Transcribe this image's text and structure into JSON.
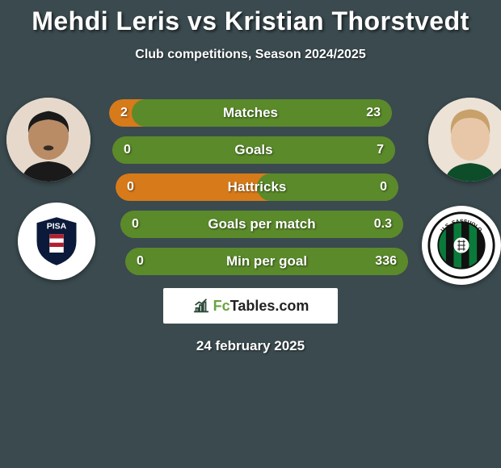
{
  "title": "Mehdi Leris vs Kristian Thorstvedt",
  "subtitle": "Club competitions, Season 2024/2025",
  "date": "24 february 2025",
  "footer_brand_prefix": "Fc",
  "footer_brand_suffix": "Tables.com",
  "background_color": "#3a4a4f",
  "player_left": {
    "name": "Mehdi Leris",
    "skin": "#b98c66",
    "hair": "#1a1a1a"
  },
  "player_right": {
    "name": "Kristian Thorstvedt",
    "skin": "#e8c7a8",
    "hair": "#c8a06a"
  },
  "club_left": {
    "name": "pisa",
    "badge_bg": "#0b1a3a",
    "badge_text": "PISA",
    "accent": "#b02030"
  },
  "club_right": {
    "name": "sassuolo",
    "stripe_a": "#0a7a3a",
    "stripe_b": "#111111",
    "text": "U.S. SASSUOLO"
  },
  "bars": {
    "left_half_color": "#d77a1a",
    "right_half_color": "#5a8a2a",
    "fill_color_right": "#5a8a2a",
    "empty_color_left": "#d77a1a",
    "font_size": 17,
    "rows": [
      {
        "label": "Matches",
        "left": "2",
        "right": "23",
        "right_pct": 92
      },
      {
        "label": "Goals",
        "left": "0",
        "right": "7",
        "right_pct": 100
      },
      {
        "label": "Hattricks",
        "left": "0",
        "right": "0",
        "right_pct": 50
      },
      {
        "label": "Goals per match",
        "left": "0",
        "right": "0.3",
        "right_pct": 100
      },
      {
        "label": "Min per goal",
        "left": "0",
        "right": "336",
        "right_pct": 100
      }
    ]
  }
}
